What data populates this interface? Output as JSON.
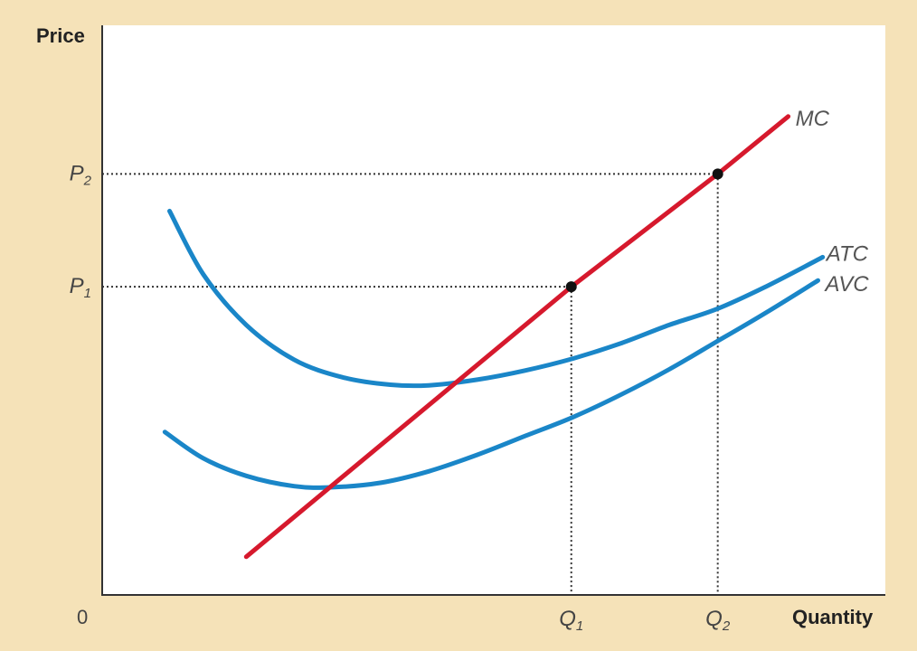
{
  "chart_data": {
    "type": "line",
    "ylabel": "Price",
    "xlabel": "Quantity",
    "origin_label": "0",
    "xlim": [
      0,
      100
    ],
    "ylim": [
      0,
      100
    ],
    "grid": false,
    "colors": {
      "mc": "#d6192d",
      "cost": "#1a86c8",
      "guide": "#333333",
      "point": "#111111"
    },
    "x_ticks": [
      {
        "base": "Q",
        "sub": "1",
        "value": 59.9
      },
      {
        "base": "Q",
        "sub": "2",
        "value": 78.6
      }
    ],
    "y_ticks": [
      {
        "base": "P",
        "sub": "1",
        "value": 54.1
      },
      {
        "base": "P",
        "sub": "2",
        "value": 73.9
      }
    ],
    "series": [
      {
        "name": "MC",
        "points": [
          [
            18.4,
            6.7
          ],
          [
            59.9,
            54.1
          ],
          [
            78.6,
            73.9
          ],
          [
            87.6,
            84.0
          ]
        ]
      },
      {
        "name": "ATC",
        "points": [
          [
            8.6,
            67.4
          ],
          [
            12.9,
            56.3
          ],
          [
            18.4,
            47.4
          ],
          [
            24.5,
            41.3
          ],
          [
            30.7,
            38.2
          ],
          [
            36.8,
            36.9
          ],
          [
            41.7,
            36.8
          ],
          [
            47.9,
            37.8
          ],
          [
            54.0,
            39.4
          ],
          [
            60.1,
            41.5
          ],
          [
            66.3,
            44.2
          ],
          [
            72.4,
            47.4
          ],
          [
            78.5,
            50.2
          ],
          [
            84.7,
            54.1
          ],
          [
            92.0,
            59.3
          ]
        ]
      },
      {
        "name": "AVC",
        "points": [
          [
            8.0,
            28.6
          ],
          [
            12.9,
            24.0
          ],
          [
            18.4,
            20.9
          ],
          [
            24.5,
            19.1
          ],
          [
            29.4,
            18.9
          ],
          [
            35.6,
            19.7
          ],
          [
            41.7,
            21.7
          ],
          [
            47.9,
            24.6
          ],
          [
            54.0,
            27.9
          ],
          [
            60.1,
            31.2
          ],
          [
            66.3,
            35.2
          ],
          [
            72.4,
            39.6
          ],
          [
            78.5,
            44.5
          ],
          [
            84.7,
            49.5
          ],
          [
            91.4,
            55.2
          ]
        ]
      }
    ],
    "highlight_points": [
      {
        "x": 59.9,
        "y": 54.1
      },
      {
        "x": 78.6,
        "y": 73.9
      }
    ]
  }
}
